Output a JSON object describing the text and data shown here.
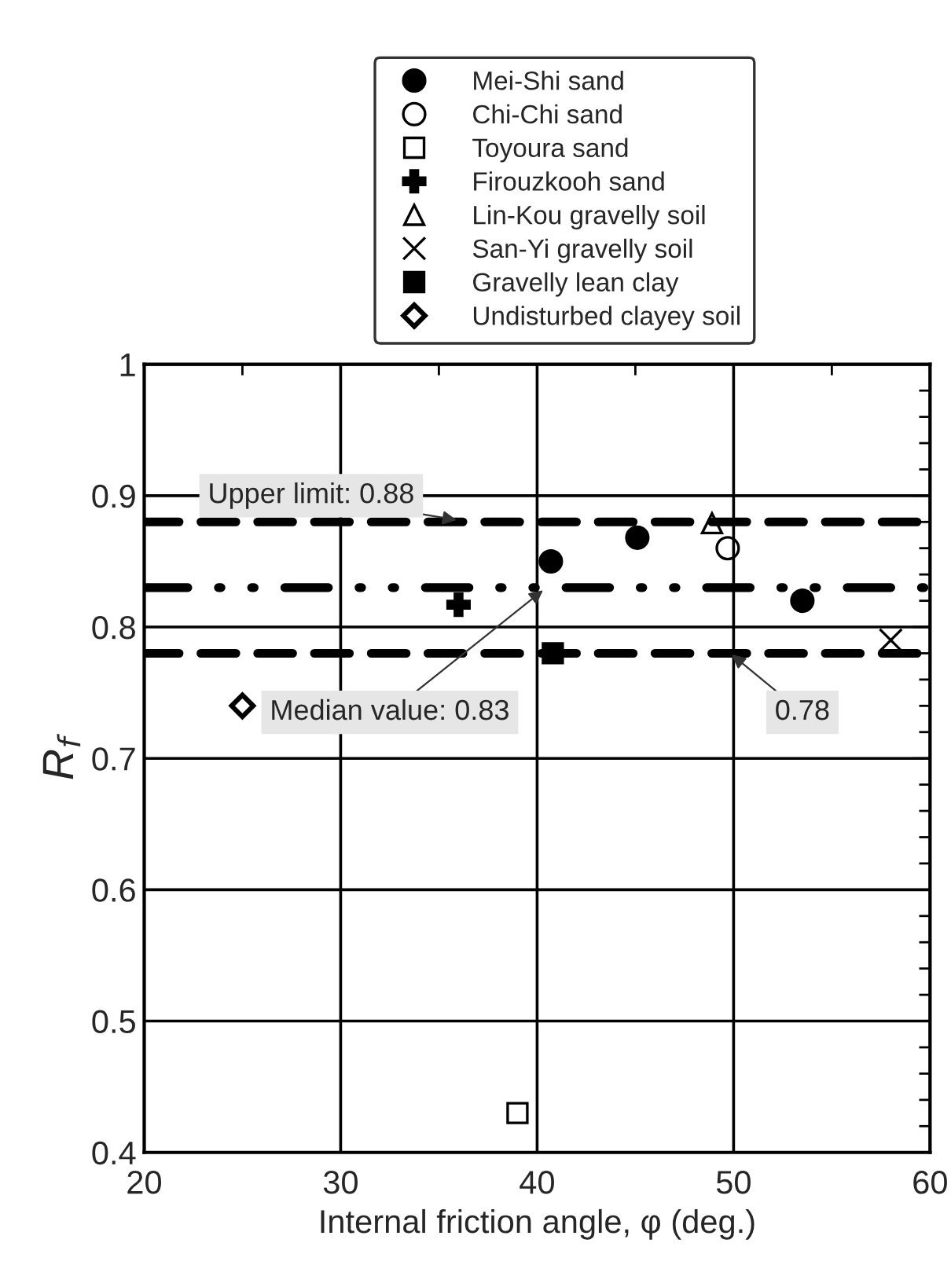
{
  "chart_data": {
    "type": "scatter",
    "xlabel": "Internal friction angle, φ (deg.)",
    "ylabel": "R$_{f}$",
    "xlim": [
      20,
      60
    ],
    "xticks": [
      20,
      30,
      40,
      50,
      60
    ],
    "ylim": [
      0.4,
      1
    ],
    "yticks": [
      0.4,
      0.5,
      0.6,
      0.7,
      0.8,
      0.9,
      1
    ],
    "grid": true,
    "legend": "top",
    "series": [
      {
        "name": "Mei-Shi sand",
        "color": "#000000",
        "marker": "circle",
        "x": [
          40.7,
          45.1,
          53.5
        ],
        "values": [
          0.85,
          0.868,
          0.82
        ]
      },
      {
        "name": "Chi-Chi sand",
        "color": "#000000",
        "marker": "circle-open",
        "x": [
          49.7
        ],
        "values": [
          0.86
        ]
      },
      {
        "name": "Toyoura sand",
        "color": "#000000",
        "marker": "square-open",
        "x": [
          39
        ],
        "values": [
          0.43
        ]
      },
      {
        "name": "Firouzkooh sand",
        "color": "#000000",
        "marker": "plus",
        "x": [
          36
        ],
        "values": [
          0.817
        ]
      },
      {
        "name": "Lin-Kou gravelly soil",
        "color": "#000000",
        "marker": "triangle-open",
        "x": [
          48.9
        ],
        "values": [
          0.879
        ]
      },
      {
        "name": "San-Yi gravelly soil",
        "color": "#000000",
        "marker": "cross",
        "x": [
          58
        ],
        "values": [
          0.79
        ]
      },
      {
        "name": "Gravelly lean clay",
        "color": "#000000",
        "marker": "square",
        "x": [
          40.8
        ],
        "values": [
          0.78
        ]
      },
      {
        "name": "Undisturbed clayey soil",
        "color": "#000000",
        "marker": "diamond-open",
        "x": [
          25
        ],
        "values": [
          0.74
        ]
      }
    ],
    "ref_lines": [
      {
        "axis": "y",
        "value": 0.88,
        "label": "Upper limit: 0.88",
        "line_style": "dashed",
        "color": "#000000"
      },
      {
        "axis": "y",
        "value": 0.83,
        "label": "Median value: 0.83",
        "line_style": "dashdot",
        "color": "#000000"
      },
      {
        "axis": "y",
        "value": 0.78,
        "label": "0.78",
        "line_style": "dashed",
        "color": "#000000"
      }
    ]
  }
}
